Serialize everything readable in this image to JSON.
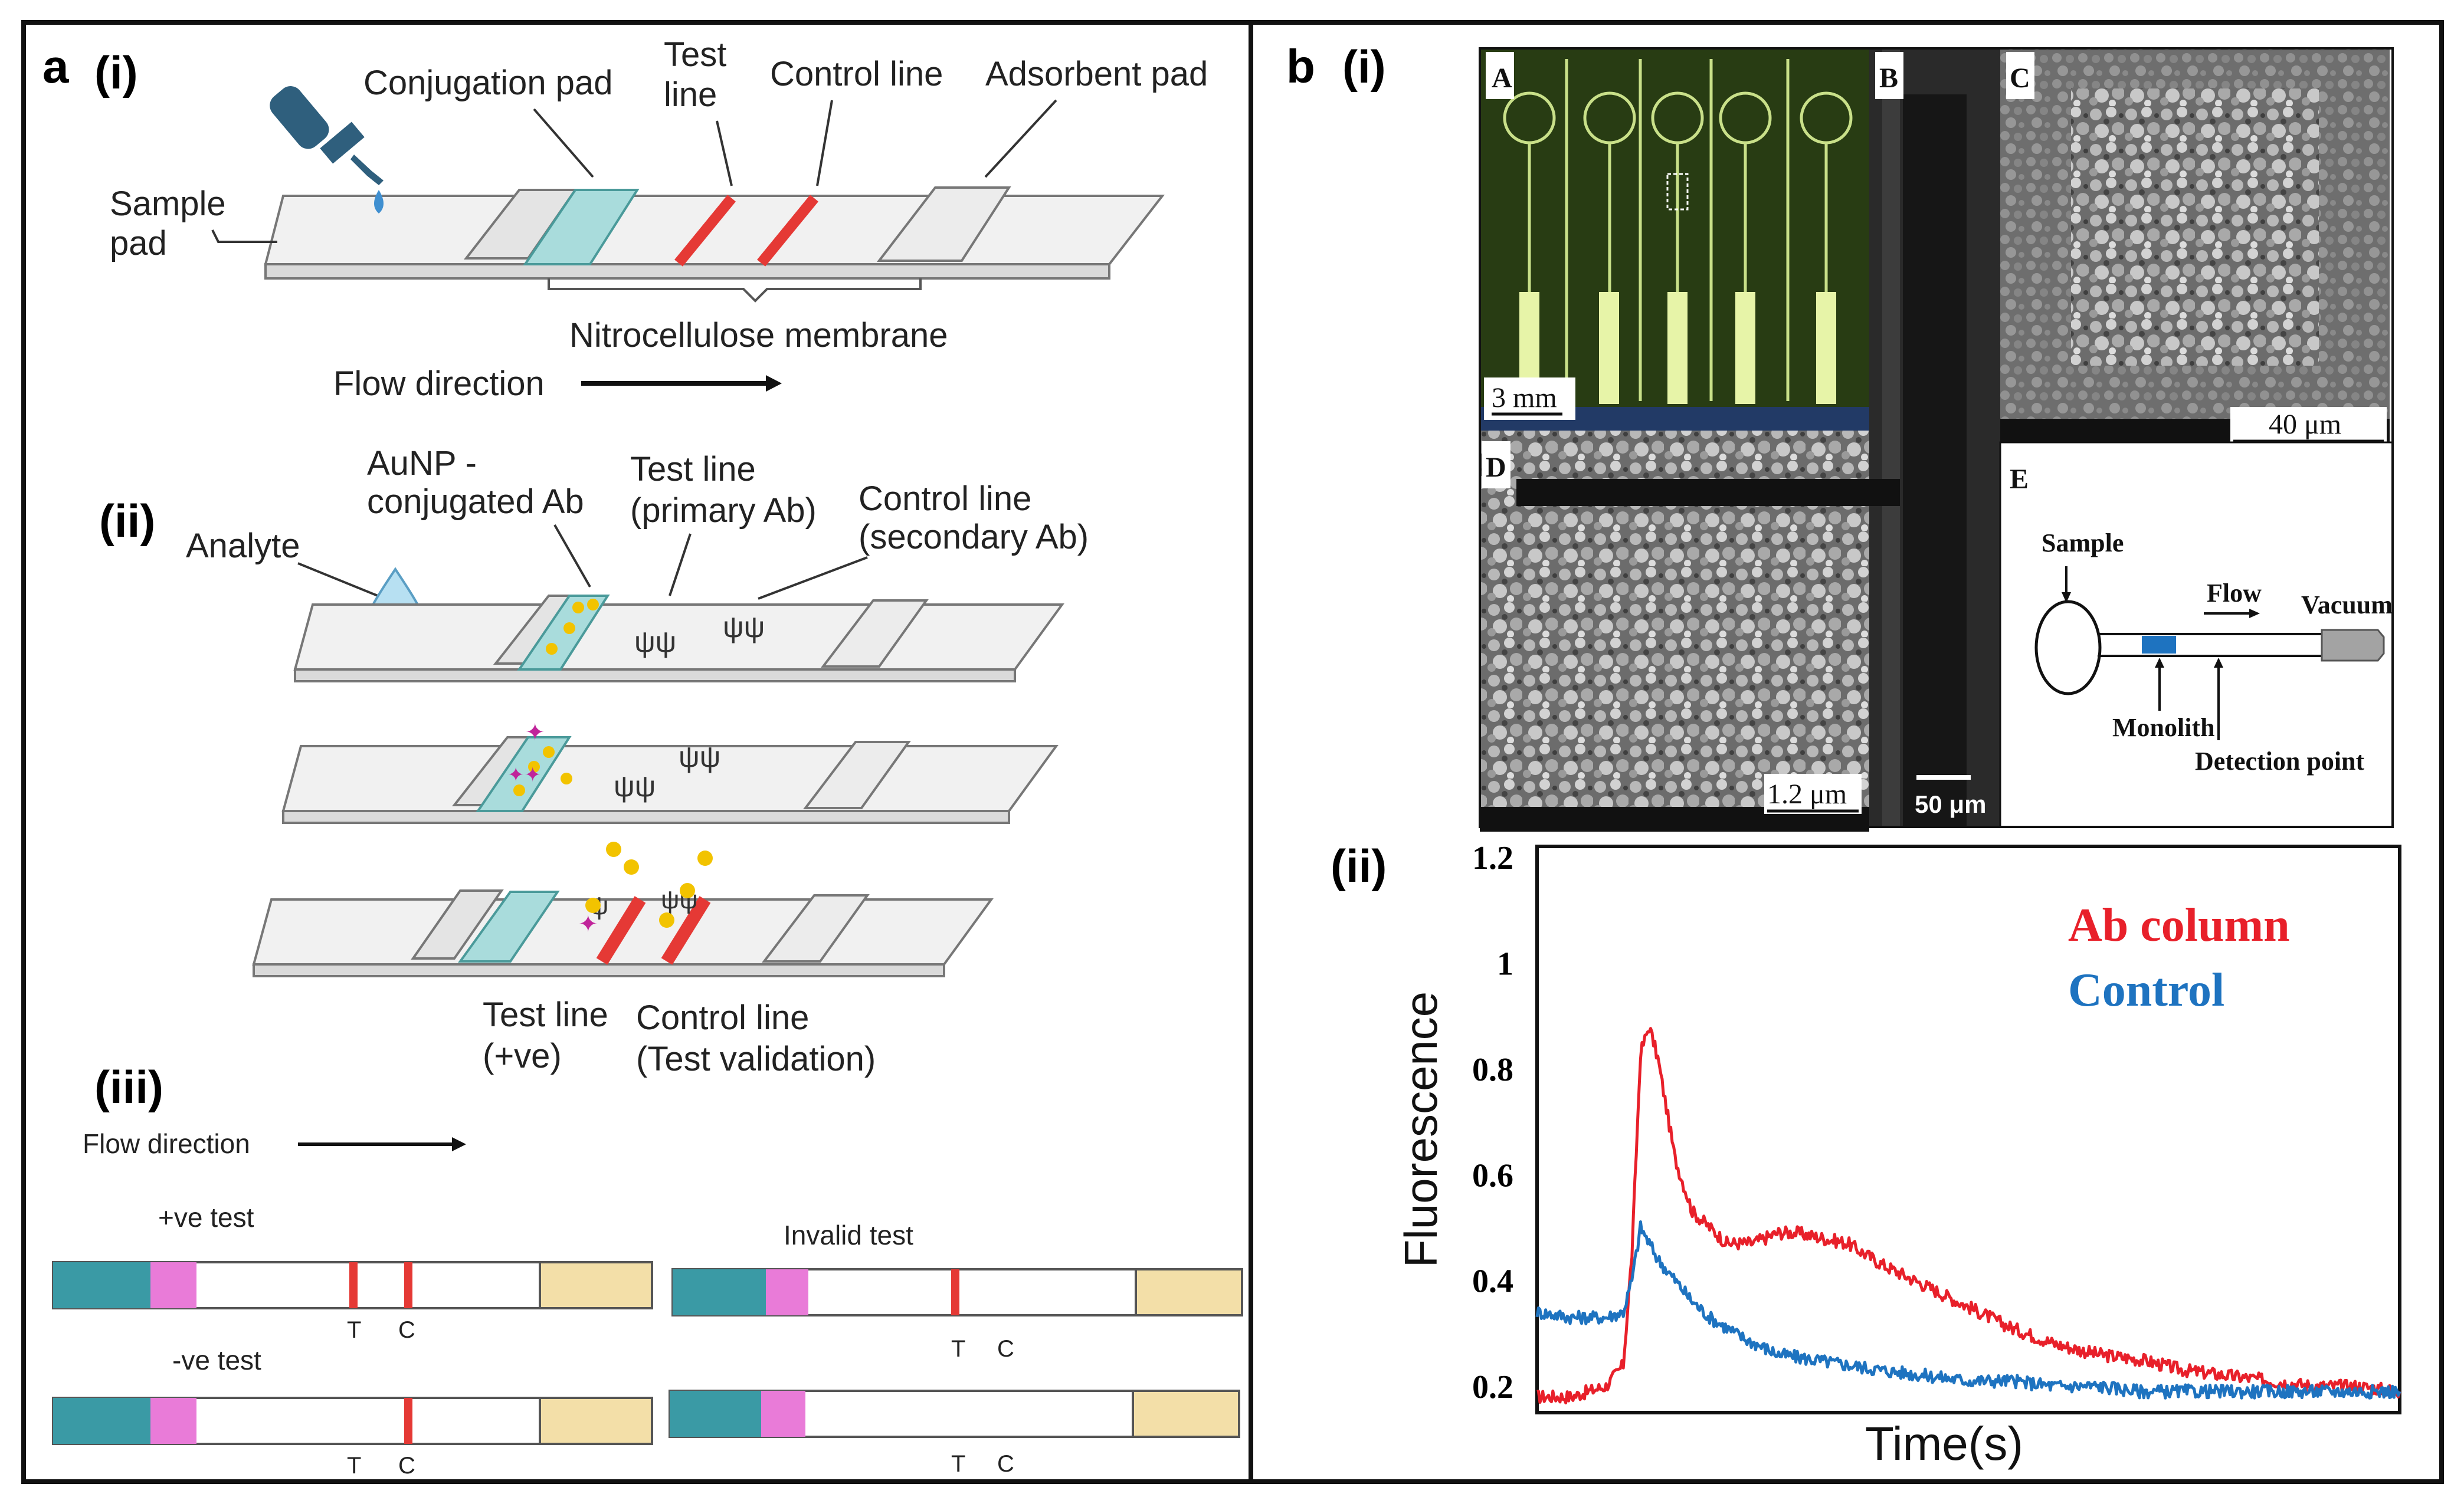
{
  "panel_a": {
    "label": "a",
    "i": {
      "label": "(i)",
      "conjugation_pad": "Conjugation pad",
      "test_line_1": "Test",
      "test_line_2": "line",
      "control_line": "Control line",
      "adsorbent_pad": "Adsorbent pad",
      "sample_pad_1": "Sample",
      "sample_pad_2": "pad",
      "membrane": "Nitrocellulose membrane",
      "flow": "Flow direction"
    },
    "ii": {
      "label": "(ii)",
      "analyte": "Analyte",
      "aunp_1": "AuNP -",
      "aunp_2": "conjugated Ab",
      "test_primary_1": "Test line",
      "test_primary_2": "(primary Ab)",
      "control_secondary_1": "Control line",
      "control_secondary_2": "(secondary Ab)",
      "test_pos_1": "Test line",
      "test_pos_2": "(+ve)",
      "control_valid_1": "Control line",
      "control_valid_2": "(Test validation)"
    },
    "iii": {
      "label": "(iii)",
      "flow": "Flow direction",
      "pos_test": "+ve test",
      "neg_test": "-ve test",
      "invalid_test": "Invalid test",
      "t": "T",
      "c": "C"
    }
  },
  "panel_b": {
    "label": "b",
    "i": {
      "label": "(i)",
      "A": "A",
      "B": "B",
      "C": "C",
      "D": "D",
      "E": "E",
      "scale_A": "3 mm",
      "scale_B": "50 μm",
      "scale_C": "40 μm",
      "scale_D": "1.2 μm",
      "schematic": {
        "sample": "Sample",
        "flow": "Flow",
        "vacuum": "Vacuum",
        "monolith": "Monolith",
        "detection": "Detection point"
      }
    },
    "ii": {
      "label": "(ii)"
    }
  },
  "chart_data": {
    "type": "line",
    "title": "",
    "xlabel": "Time(s)",
    "ylabel": "Fluorescence",
    "ylim": [
      0.15,
      1.22
    ],
    "yticks": [
      0.2,
      0.4,
      0.6,
      0.8,
      1,
      1.2
    ],
    "ytick_labels": [
      "0.2",
      "0.4",
      "0.6",
      "0.8",
      "1",
      "1.2"
    ],
    "xlim": [
      0,
      100
    ],
    "legend": [
      "Ab column",
      "Control"
    ],
    "series": [
      {
        "name": "Ab column",
        "color": "#e8202a",
        "x": [
          0,
          4,
          8,
          10,
          11,
          12,
          13,
          14,
          16,
          18,
          20,
          22,
          25,
          28,
          30,
          33,
          36,
          38,
          40,
          45,
          50,
          55,
          60,
          65,
          70,
          75,
          80,
          85,
          90,
          95,
          100
        ],
        "y": [
          0.18,
          0.18,
          0.2,
          0.24,
          0.45,
          0.83,
          0.88,
          0.82,
          0.63,
          0.53,
          0.5,
          0.47,
          0.47,
          0.49,
          0.49,
          0.48,
          0.47,
          0.45,
          0.43,
          0.39,
          0.35,
          0.31,
          0.28,
          0.26,
          0.25,
          0.23,
          0.22,
          0.21,
          0.2,
          0.2,
          0.19
        ]
      },
      {
        "name": "Control",
        "color": "#1e73c0",
        "x": [
          0,
          4,
          8,
          10,
          11,
          12,
          13,
          14,
          16,
          18,
          20,
          24,
          28,
          32,
          36,
          40,
          45,
          50,
          55,
          60,
          65,
          70,
          75,
          80,
          85,
          90,
          95,
          100
        ],
        "y": [
          0.34,
          0.33,
          0.33,
          0.34,
          0.4,
          0.5,
          0.47,
          0.44,
          0.4,
          0.36,
          0.33,
          0.29,
          0.26,
          0.25,
          0.24,
          0.23,
          0.22,
          0.21,
          0.21,
          0.2,
          0.2,
          0.19,
          0.19,
          0.19,
          0.19,
          0.19,
          0.19,
          0.19
        ]
      }
    ]
  },
  "colors": {
    "red_line": "#e53935",
    "pad_teal": "#3a9aa5",
    "pad_pink": "#e97bd8",
    "pad_tan": "#f3dfa8",
    "conj_pad": "#a9dcdc",
    "dropper": "#2f5f7d"
  }
}
